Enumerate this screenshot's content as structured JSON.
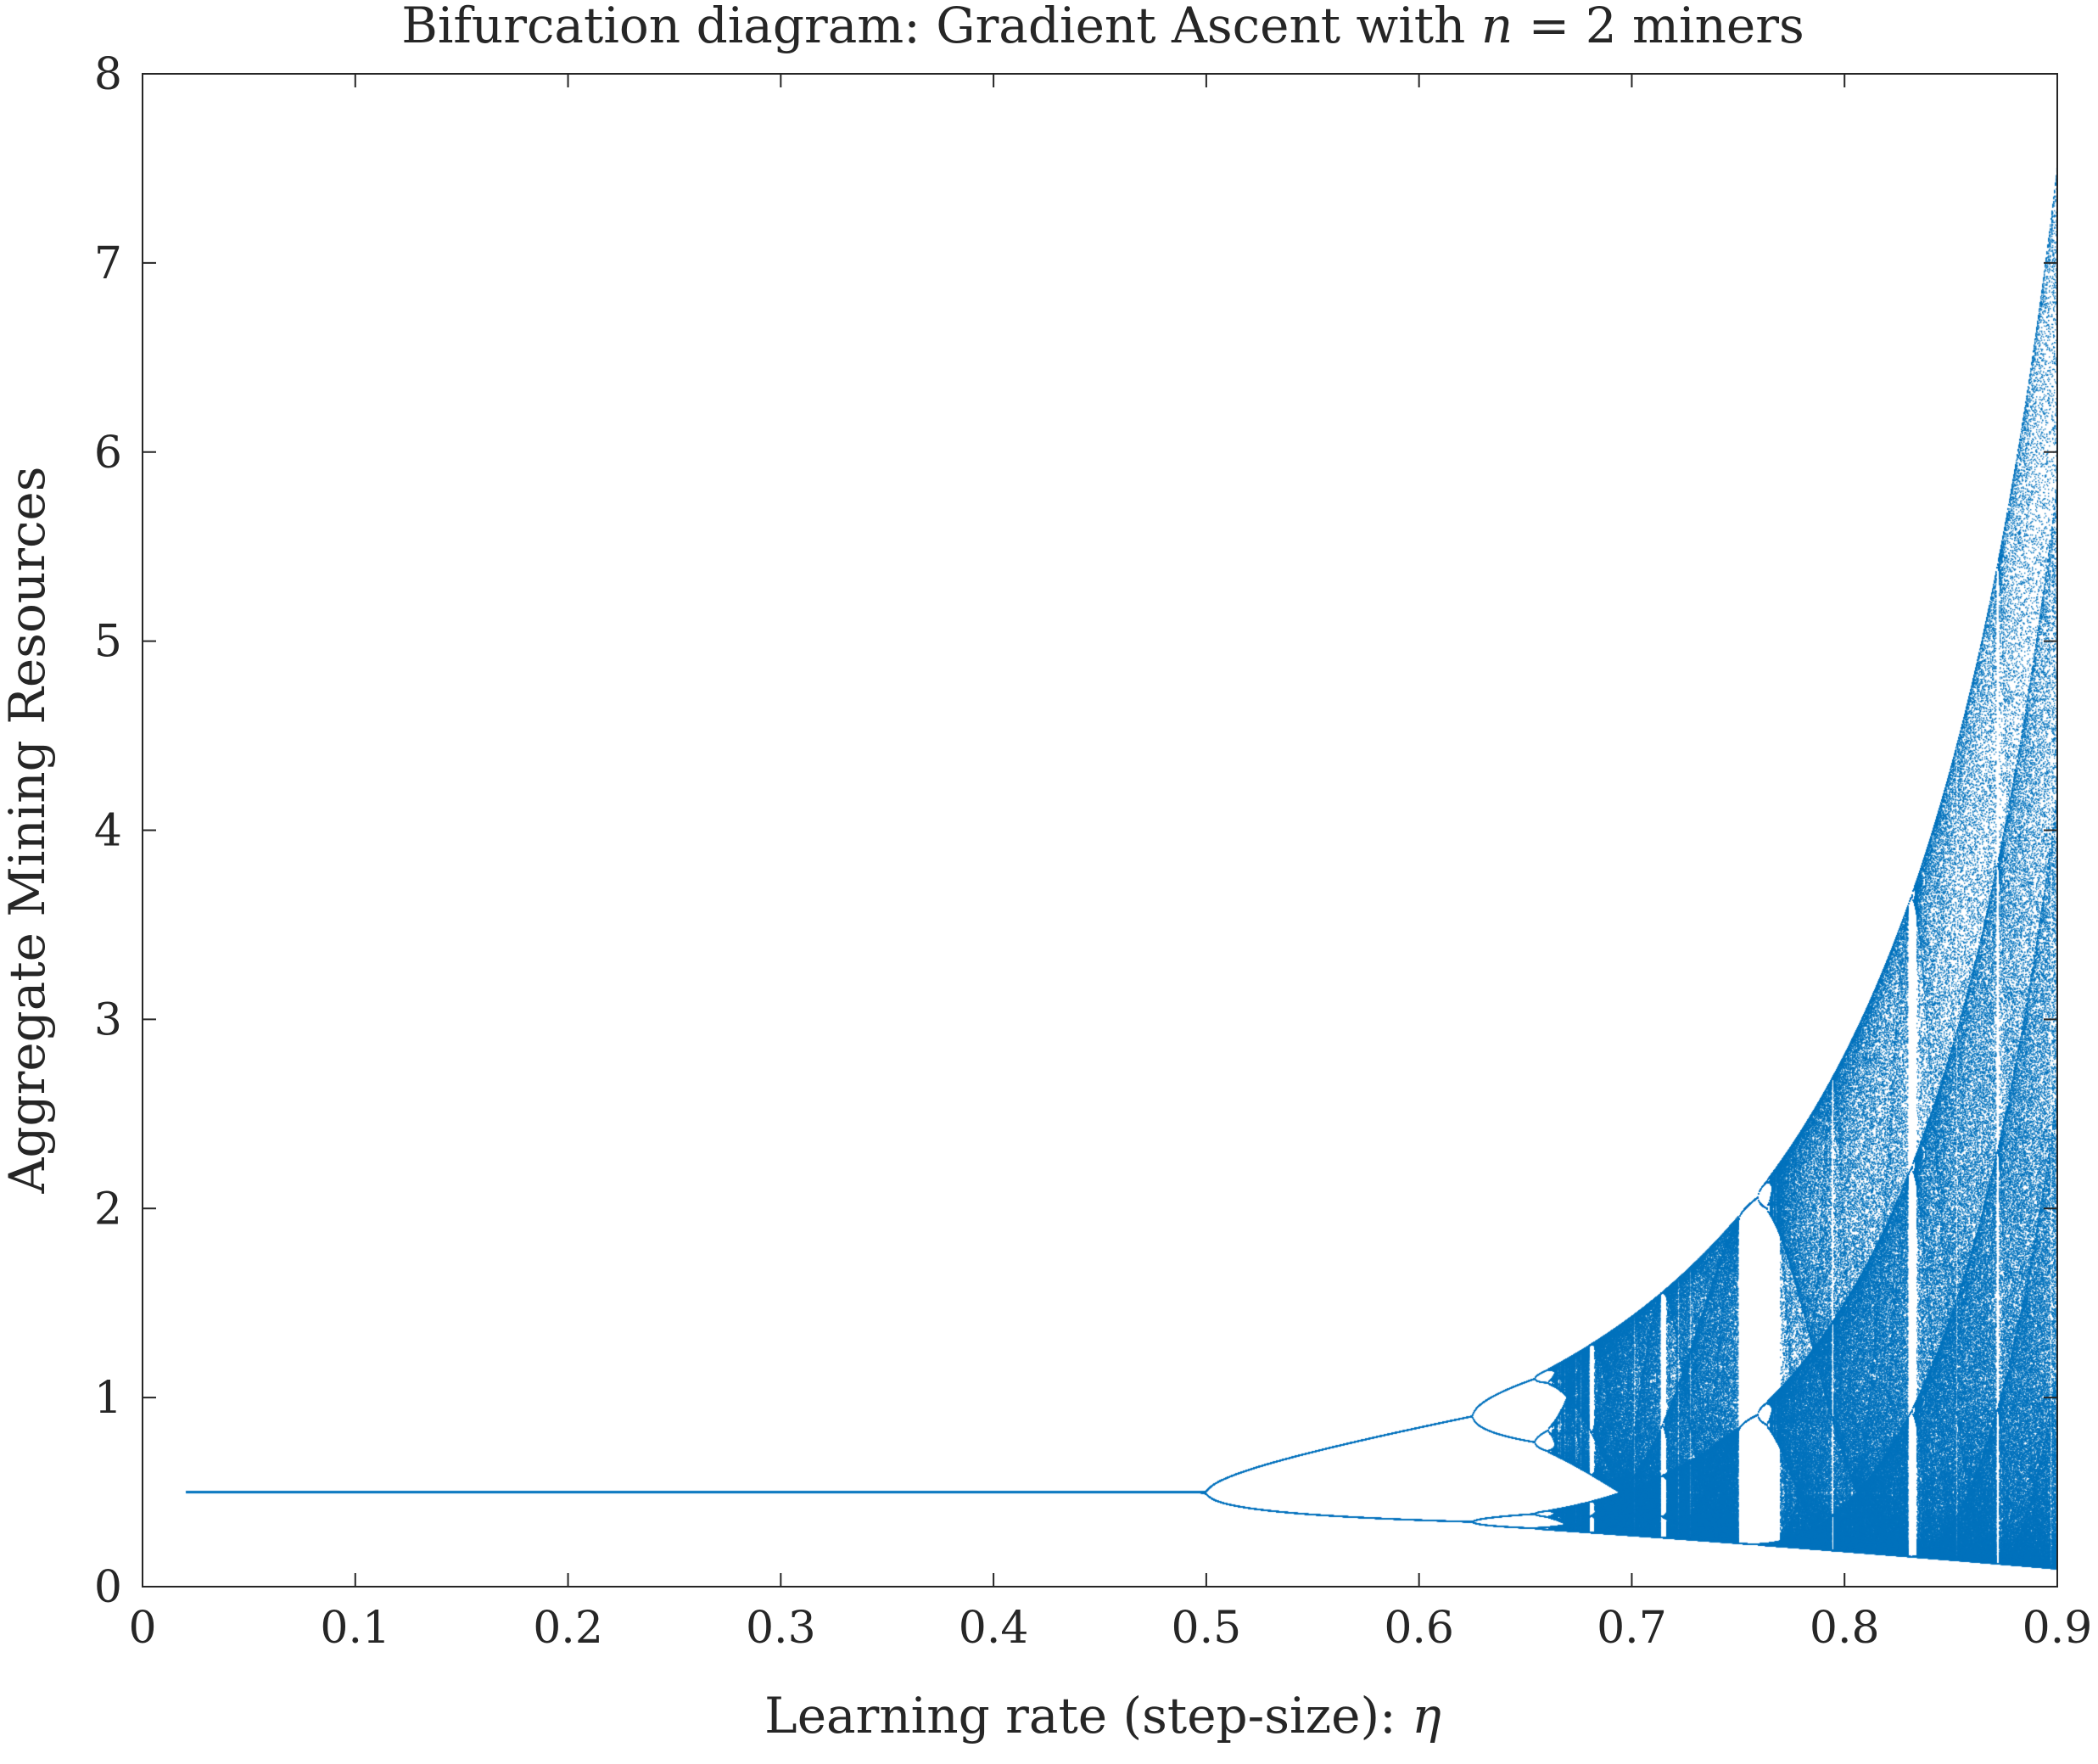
{
  "chart_data": {
    "type": "scatter",
    "title_parts": {
      "prefix": "Bifurcation diagram: Gradient Ascent with ",
      "var": "n",
      "eq": " = ",
      "value": "2",
      "suffix": " miners"
    },
    "xlabel_parts": {
      "text": "Learning rate (step-size): ",
      "symbol": "η"
    },
    "ylabel": "Aggregate Mining Resources",
    "xlim": [
      0,
      0.9
    ],
    "ylim": [
      0,
      8
    ],
    "xticks": [
      0,
      0.1,
      0.2,
      0.3,
      0.4,
      0.5,
      0.6,
      0.7,
      0.8,
      0.9
    ],
    "xtick_labels": [
      "0",
      "0.1",
      "0.2",
      "0.3",
      "0.4",
      "0.5",
      "0.6",
      "0.7",
      "0.8",
      "0.9"
    ],
    "yticks": [
      0,
      1,
      2,
      3,
      4,
      5,
      6,
      7,
      8
    ],
    "ytick_labels": [
      "0",
      "1",
      "2",
      "3",
      "4",
      "5",
      "6",
      "7",
      "8"
    ],
    "grid": false,
    "legend": "none",
    "series": [
      {
        "color": "#0072BD",
        "description_points": {
          "stable_fixed_point": {
            "eta_range": [
              0.02,
              0.5
            ],
            "value": 0.5
          },
          "period_2": {
            "eta_range": [
              0.5,
              0.622
            ],
            "upper_end": 0.9,
            "lower_end": 0.35
          },
          "period_4": {
            "eta_range": [
              0.622,
              0.66
            ],
            "upper": [
              1.05,
              0.8
            ],
            "lower": [
              0.5,
              0.33
            ]
          },
          "chaos_upper_envelope": [
            [
              0.66,
              1.15
            ],
            [
              0.7,
              1.45
            ],
            [
              0.75,
              2.0
            ],
            [
              0.8,
              3.0
            ],
            [
              0.85,
              4.6
            ],
            [
              0.9,
              7.55
            ]
          ],
          "chaos_lower_envelope": [
            [
              0.66,
              0.3
            ],
            [
              0.7,
              0.25
            ],
            [
              0.8,
              0.18
            ],
            [
              0.9,
              0.1
            ]
          ],
          "periodic_windows": [
            0.685,
            0.715,
            0.755,
            0.768,
            0.832
          ]
        }
      }
    ]
  }
}
